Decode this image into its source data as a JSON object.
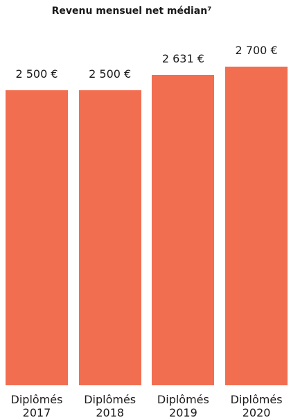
{
  "chart_data": {
    "type": "bar",
    "title": "Revenu mensuel net médian⁷",
    "categories": [
      "Diplômés 2017",
      "Diplômés 2018",
      "Diplômés 2019",
      "Diplômés 2020"
    ],
    "values": [
      2500,
      2500,
      2631,
      2700
    ],
    "value_labels": [
      "2 500 €",
      "2 500 €",
      "2 631 €",
      "2 700 €"
    ],
    "color": "#f26e51"
  }
}
